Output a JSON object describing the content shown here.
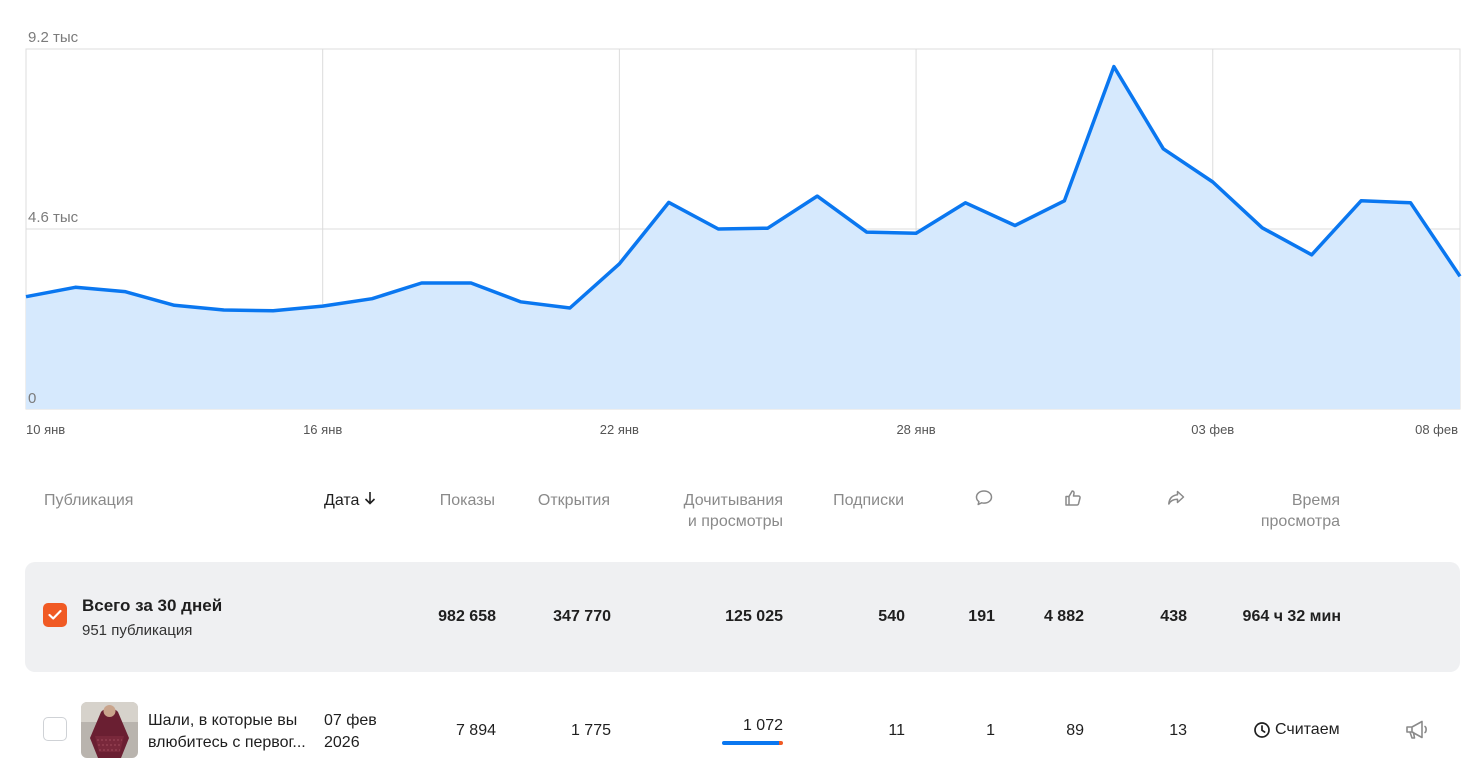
{
  "chart_data": {
    "type": "area",
    "y_ticks": [
      "9.2 тыс",
      "4.6 тыс",
      "0"
    ],
    "ylim": [
      0,
      9200
    ],
    "x_tick_labels": [
      "10 янв",
      "16 янв",
      "22 янв",
      "28 янв",
      "03 фев",
      "08 фев"
    ],
    "x": [
      "10 янв",
      "11 янв",
      "12 янв",
      "13 янв",
      "14 янв",
      "15 янв",
      "16 янв",
      "17 янв",
      "18 янв",
      "19 янв",
      "20 янв",
      "21 янв",
      "22 янв",
      "23 янв",
      "24 янв",
      "25 янв",
      "26 янв",
      "27 янв",
      "28 янв",
      "29 янв",
      "30 янв",
      "31 янв",
      "01 фев",
      "02 фев",
      "03 фев",
      "04 фев",
      "05 фев",
      "06 фев",
      "07 фев",
      "08 фев"
    ],
    "values": [
      2870,
      3110,
      3000,
      2650,
      2530,
      2510,
      2630,
      2820,
      3220,
      3220,
      2740,
      2580,
      3710,
      5280,
      4600,
      4620,
      5440,
      4520,
      4490,
      5270,
      4690,
      5320,
      8750,
      6650,
      5800,
      4630,
      3940,
      5320,
      5270,
      3390
    ],
    "line_color": "#0a77f0",
    "fill_color": "#d6e9fd",
    "grid": true
  },
  "table": {
    "headers": {
      "publication": "Публикация",
      "date": "Дата",
      "shows": "Показы",
      "opens": "Открытия",
      "reads_1": "Дочитывания",
      "reads_2": "и просмотры",
      "subs": "Подписки",
      "time_1": "Время",
      "time_2": "просмотра"
    },
    "header_icons": [
      "comment-icon",
      "like-icon",
      "share-icon"
    ],
    "total": {
      "title": "Всего за 30 дней",
      "subtitle": "951 публикация",
      "shows": "982 658",
      "opens": "347 770",
      "reads": "125 025",
      "subs": "540",
      "comments": "191",
      "likes": "4 882",
      "shares": "438",
      "time": "964 ч 32 мин"
    },
    "rows": [
      {
        "title": "Шали, в которые вы влюбитесь с первог...",
        "date_line1": "07 фев",
        "date_line2": "2026",
        "shows": "7 894",
        "opens": "1 775",
        "reads": "1 072",
        "reads_progress": 0.93,
        "subs": "11",
        "comments": "1",
        "likes": "89",
        "shares": "13",
        "time": "Считаем"
      }
    ]
  },
  "colors": {
    "accent": "#f05a24",
    "line": "#0a77f0",
    "area": "#d6e9fd",
    "total_bg": "#eff0f2"
  }
}
